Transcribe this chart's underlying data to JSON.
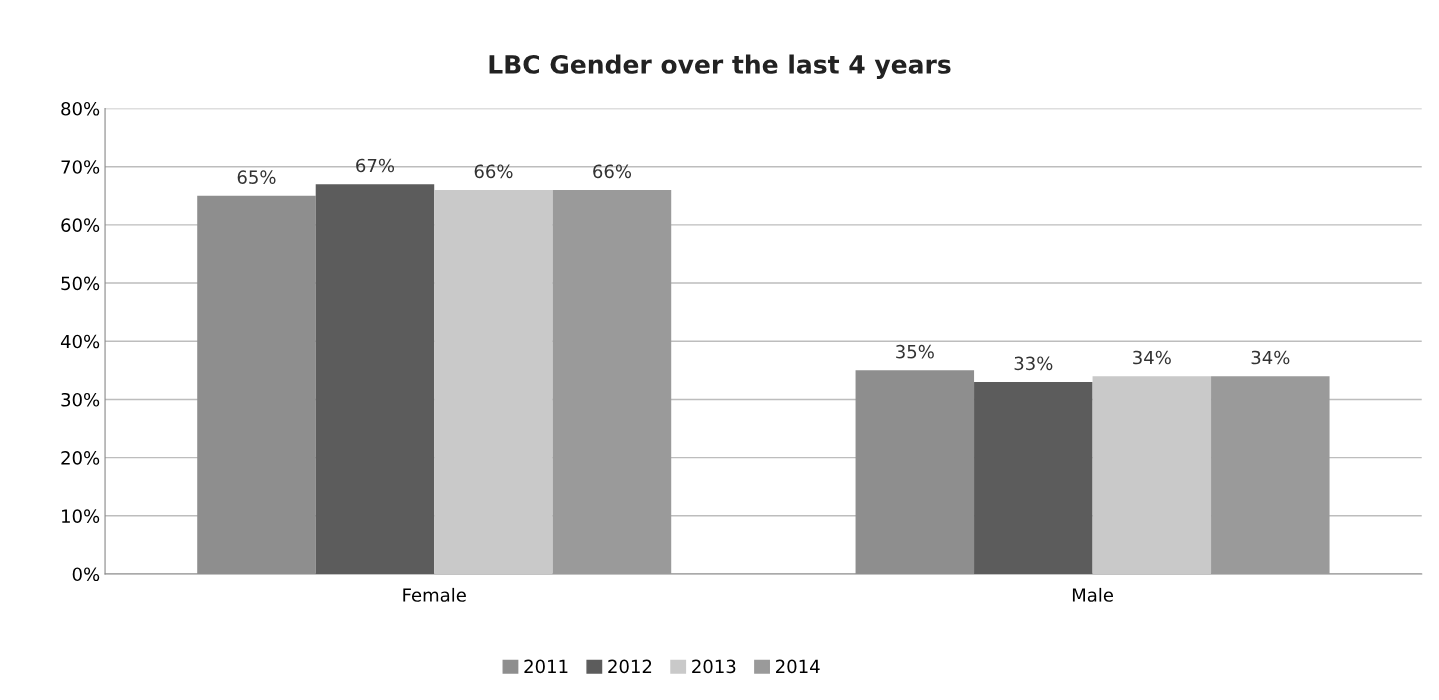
{
  "chart_data": {
    "type": "bar",
    "title": "LBC Gender over the last 4 years",
    "categories": [
      "Female",
      "Male"
    ],
    "series": [
      {
        "name": "2011",
        "color": "#8e8e8e",
        "values": [
          65,
          35
        ],
        "value_labels": [
          "65%",
          "35%"
        ]
      },
      {
        "name": "2012",
        "color": "#5c5c5c",
        "values": [
          67,
          33
        ],
        "value_labels": [
          "67%",
          "33%"
        ]
      },
      {
        "name": "2013",
        "color": "#c9c9c9",
        "values": [
          66,
          34
        ],
        "value_labels": [
          "66%",
          "34%"
        ]
      },
      {
        "name": "2014",
        "color": "#9a9a9a",
        "values": [
          66,
          34
        ],
        "value_labels": [
          "66%",
          "34%"
        ]
      }
    ],
    "ylim": [
      0,
      80
    ],
    "yticks": [
      {
        "value": 0,
        "label": "0%"
      },
      {
        "value": 10,
        "label": "10%"
      },
      {
        "value": 20,
        "label": "20%"
      },
      {
        "value": 30,
        "label": "30%"
      },
      {
        "value": 40,
        "label": "40%"
      },
      {
        "value": 50,
        "label": "50%"
      },
      {
        "value": 60,
        "label": "60%"
      },
      {
        "value": 70,
        "label": "70%"
      },
      {
        "value": 80,
        "label": "80%"
      }
    ],
    "grid": "y",
    "legend": "bottom"
  }
}
